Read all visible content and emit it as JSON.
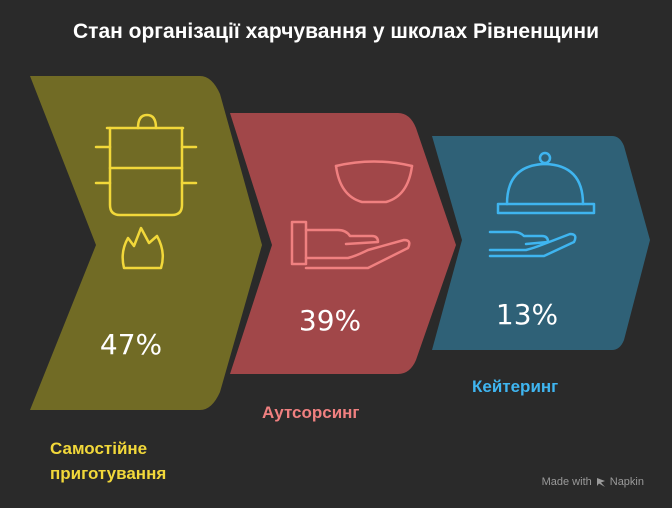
{
  "title": "Стан організації харчування у школах Рівненщини",
  "colors": {
    "background": "#2a2a2a",
    "self_cooking": "#716b25",
    "self_cooking_text": "#f2d83a",
    "outsourcing": "#a14749",
    "outsourcing_text": "#f08080",
    "catering": "#2f6177",
    "catering_text": "#3fb5f0"
  },
  "stages": [
    {
      "label": "Самостійне приготування",
      "label_lines": [
        "Самостійне",
        "приготування"
      ],
      "percent": "47%",
      "value": 47,
      "icon": "cooking-pot-on-flame-icon"
    },
    {
      "label": "Аутсорсинг",
      "percent": "39%",
      "value": 39,
      "icon": "bowl-on-hand-icon"
    },
    {
      "label": "Кейтеринг",
      "percent": "13%",
      "value": 13,
      "icon": "cloche-on-hand-icon"
    }
  ],
  "watermark": {
    "text": "Made with",
    "brand": "Napkin",
    "icon": "napkin-logo-icon"
  }
}
